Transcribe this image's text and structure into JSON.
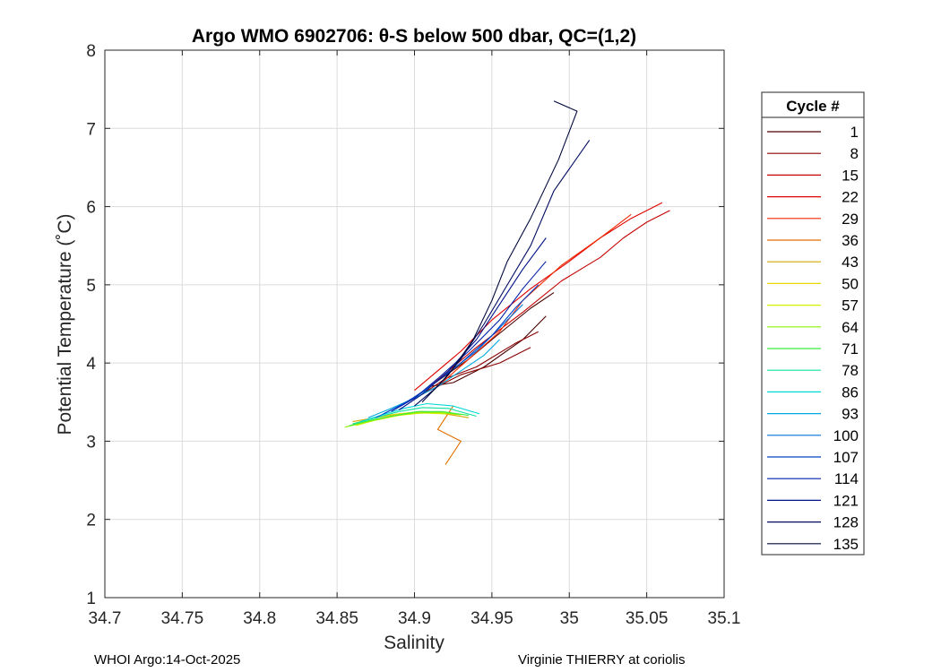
{
  "chart_data": {
    "type": "line",
    "title": "Argo WMO 6902706: θ-S below 500 dbar,  QC=(1,2)",
    "xlabel": "Salinity",
    "ylabel": "Potential Temperature (˚C)",
    "xlim": [
      34.7,
      35.1
    ],
    "ylim": [
      1,
      8
    ],
    "x_ticks": [
      "34.7",
      "34.75",
      "34.8",
      "34.85",
      "34.9",
      "34.95",
      "35",
      "35.05",
      "35.1"
    ],
    "y_ticks": [
      "1",
      "2",
      "3",
      "4",
      "5",
      "6",
      "7",
      "8"
    ],
    "grid": true,
    "legend": {
      "title": "Cycle #",
      "placement": "right",
      "entries": [
        {
          "label": "1",
          "color": "#4a0000"
        },
        {
          "label": "8",
          "color": "#8b0000"
        },
        {
          "label": "15",
          "color": "#c40000"
        },
        {
          "label": "22",
          "color": "#e00000"
        },
        {
          "label": "29",
          "color": "#f22a00"
        },
        {
          "label": "36",
          "color": "#e07000"
        },
        {
          "label": "43",
          "color": "#d8a800"
        },
        {
          "label": "50",
          "color": "#e8d800"
        },
        {
          "label": "57",
          "color": "#d4f000"
        },
        {
          "label": "64",
          "color": "#8cf000"
        },
        {
          "label": "71",
          "color": "#3cec3c"
        },
        {
          "label": "78",
          "color": "#10e0a0"
        },
        {
          "label": "86",
          "color": "#00d8d8"
        },
        {
          "label": "93",
          "color": "#00a8e0"
        },
        {
          "label": "100",
          "color": "#0070d8"
        },
        {
          "label": "107",
          "color": "#0040c8"
        },
        {
          "label": "114",
          "color": "#0020a8"
        },
        {
          "label": "121",
          "color": "#001488"
        },
        {
          "label": "128",
          "color": "#000c60"
        },
        {
          "label": "135",
          "color": "#00083c"
        }
      ]
    },
    "series": [
      {
        "name": "1",
        "color": "#4a0000",
        "x": [
          34.99,
          34.975,
          34.95,
          34.935,
          34.91,
          34.925,
          34.945,
          34.97,
          34.985
        ],
        "y": [
          4.9,
          4.7,
          4.3,
          4.05,
          3.7,
          3.75,
          3.95,
          4.3,
          4.6
        ]
      },
      {
        "name": "8",
        "color": "#8b0000",
        "x": [
          34.98,
          34.965,
          34.94,
          34.92,
          34.905,
          34.93,
          34.955,
          34.975
        ],
        "y": [
          4.4,
          4.25,
          3.95,
          3.8,
          3.6,
          3.85,
          4.0,
          4.2
        ]
      },
      {
        "name": "15",
        "color": "#c40000",
        "x": [
          35.065,
          35.05,
          35.035,
          35.02,
          34.995,
          34.97,
          34.94,
          34.91
        ],
        "y": [
          5.95,
          5.8,
          5.6,
          5.35,
          5.05,
          4.65,
          4.2,
          3.7
        ]
      },
      {
        "name": "22",
        "color": "#e00000",
        "x": [
          35.06,
          35.04,
          35.02,
          35.0,
          34.975,
          34.95,
          34.93,
          34.9
        ],
        "y": [
          6.05,
          5.85,
          5.6,
          5.3,
          4.95,
          4.55,
          4.15,
          3.65
        ]
      },
      {
        "name": "29",
        "color": "#f22a00",
        "x": [
          35.04,
          35.02,
          34.995,
          34.97,
          34.955,
          34.935,
          34.915
        ],
        "y": [
          5.9,
          5.6,
          5.25,
          4.8,
          4.4,
          4.05,
          3.7
        ]
      },
      {
        "name": "36",
        "color": "#e07000",
        "x": [
          34.925,
          34.92,
          34.915,
          34.93,
          34.925,
          34.92
        ],
        "y": [
          3.45,
          3.3,
          3.15,
          3.0,
          2.85,
          2.7
        ]
      },
      {
        "name": "43",
        "color": "#d8a800",
        "x": [
          34.86,
          34.875,
          34.89,
          34.905,
          34.92,
          34.935
        ],
        "y": [
          3.25,
          3.3,
          3.35,
          3.38,
          3.35,
          3.3
        ]
      },
      {
        "name": "50",
        "color": "#e8d800",
        "x": [
          34.86,
          34.87,
          34.885,
          34.9,
          34.915,
          34.93
        ],
        "y": [
          3.22,
          3.28,
          3.34,
          3.37,
          3.36,
          3.34
        ]
      },
      {
        "name": "57",
        "color": "#d4f000",
        "x": [
          34.862,
          34.875,
          34.89,
          34.905,
          34.92
        ],
        "y": [
          3.2,
          3.27,
          3.33,
          3.36,
          3.35
        ]
      },
      {
        "name": "64",
        "color": "#8cf000",
        "x": [
          34.855,
          34.87,
          34.885,
          34.9,
          34.915,
          34.93
        ],
        "y": [
          3.18,
          3.25,
          3.32,
          3.36,
          3.37,
          3.34
        ]
      },
      {
        "name": "71",
        "color": "#3cec3c",
        "x": [
          34.858,
          34.872,
          34.888,
          34.902,
          34.918,
          34.935
        ],
        "y": [
          3.2,
          3.27,
          3.33,
          3.38,
          3.38,
          3.33
        ]
      },
      {
        "name": "78",
        "color": "#10e0a0",
        "x": [
          34.86,
          34.875,
          34.89,
          34.905,
          34.922,
          34.94
        ],
        "y": [
          3.22,
          3.3,
          3.38,
          3.43,
          3.42,
          3.32
        ]
      },
      {
        "name": "86",
        "color": "#00d8d8",
        "x": [
          34.865,
          34.878,
          34.893,
          34.908,
          34.925,
          34.942
        ],
        "y": [
          3.25,
          3.33,
          3.42,
          3.48,
          3.45,
          3.35
        ]
      },
      {
        "name": "93",
        "color": "#00a8e0",
        "x": [
          34.87,
          34.885,
          34.9,
          34.915,
          34.93,
          34.945,
          34.955
        ],
        "y": [
          3.3,
          3.42,
          3.55,
          3.7,
          3.9,
          4.1,
          4.3
        ]
      },
      {
        "name": "100",
        "color": "#0070d8",
        "x": [
          34.875,
          34.89,
          34.905,
          34.92,
          34.94,
          34.955,
          34.97
        ],
        "y": [
          3.3,
          3.45,
          3.62,
          3.85,
          4.15,
          4.45,
          4.75
        ]
      },
      {
        "name": "107",
        "color": "#0040c8",
        "x": [
          34.88,
          34.895,
          34.91,
          34.93,
          34.95,
          34.965,
          34.98
        ],
        "y": [
          3.35,
          3.5,
          3.7,
          4.0,
          4.35,
          4.7,
          5.0
        ]
      },
      {
        "name": "114",
        "color": "#0020a8",
        "x": [
          34.885,
          34.9,
          34.915,
          34.935,
          34.955,
          34.97,
          34.985
        ],
        "y": [
          3.38,
          3.55,
          3.8,
          4.15,
          4.55,
          4.95,
          5.3
        ]
      },
      {
        "name": "121",
        "color": "#001488",
        "x": [
          34.89,
          34.905,
          34.922,
          34.94,
          34.955,
          34.97,
          34.985
        ],
        "y": [
          3.4,
          3.6,
          3.9,
          4.3,
          4.75,
          5.2,
          5.6
        ]
      },
      {
        "name": "128",
        "color": "#000c60",
        "x": [
          34.9,
          34.915,
          34.93,
          34.945,
          34.96,
          34.975,
          34.99,
          35.013
        ],
        "y": [
          3.45,
          3.7,
          4.05,
          4.5,
          5.0,
          5.5,
          6.2,
          6.85
        ]
      },
      {
        "name": "135",
        "color": "#00083c",
        "x": [
          34.905,
          34.922,
          34.938,
          34.95,
          34.96,
          34.975,
          34.993,
          35.005,
          34.99
        ],
        "y": [
          3.5,
          3.85,
          4.3,
          4.8,
          5.3,
          5.85,
          6.6,
          7.22,
          7.35
        ]
      }
    ]
  },
  "footer": {
    "left": "WHOI Argo:14-Oct-2025",
    "right": "Virginie THIERRY at coriolis"
  }
}
